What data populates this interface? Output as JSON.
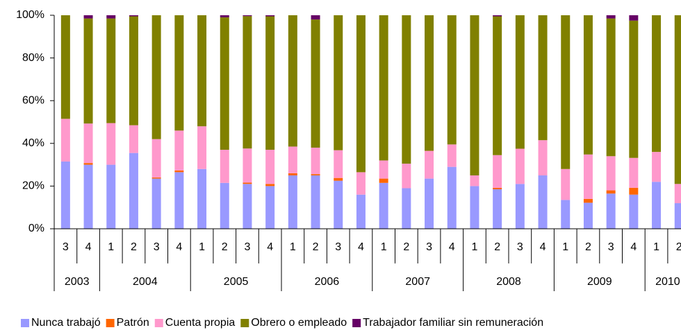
{
  "chart_data": {
    "type": "stacked_bar",
    "groups": [
      {
        "label": "2003",
        "categories": [
          "3",
          "4"
        ]
      },
      {
        "label": "2004",
        "categories": [
          "1",
          "2",
          "3",
          "4"
        ]
      },
      {
        "label": "2005",
        "categories": [
          "1",
          "2",
          "3",
          "4"
        ]
      },
      {
        "label": "2006",
        "categories": [
          "1",
          "2",
          "3",
          "4"
        ]
      },
      {
        "label": "2007",
        "categories": [
          "1",
          "2",
          "3",
          "4"
        ]
      },
      {
        "label": "2008",
        "categories": [
          "1",
          "2",
          "3",
          "4"
        ]
      },
      {
        "label": "2009",
        "categories": [
          "1",
          "2",
          "3",
          "4"
        ]
      },
      {
        "label": "2010",
        "categories": [
          "1",
          "2"
        ]
      }
    ],
    "series": [
      {
        "name": "Nunca trabajó",
        "color": "#9999ff",
        "values": [
          31.5,
          30,
          30,
          35.5,
          23.5,
          26.5,
          28,
          21.5,
          21,
          20,
          25,
          25,
          22.5,
          16,
          21.5,
          19,
          23.5,
          29,
          20,
          18.5,
          21,
          25,
          13.5,
          12.2,
          16.5,
          16,
          22,
          12
        ]
      },
      {
        "name": "Patrón",
        "color": "#ff6600",
        "values": [
          0,
          0.8,
          0,
          0,
          0.5,
          0.8,
          0,
          0,
          0.6,
          1,
          1,
          0.6,
          1.3,
          0,
          2,
          0,
          0,
          0,
          0,
          0.7,
          0,
          0,
          0,
          1.8,
          1.5,
          3.2,
          0,
          0
        ]
      },
      {
        "name": "Cuenta propia",
        "color": "#ff99cc",
        "values": [
          20,
          18.5,
          19.5,
          13,
          18,
          18.7,
          20,
          15.5,
          16,
          16,
          12.5,
          12.4,
          13,
          10.5,
          8.5,
          11.5,
          13,
          10.5,
          5,
          15.3,
          16.5,
          16.5,
          14.5,
          20.8,
          16,
          14,
          14,
          9
        ]
      },
      {
        "name": "Obrero o empleado",
        "color": "#808000",
        "values": [
          48.5,
          49.2,
          49,
          51,
          58,
          54,
          52,
          62,
          62,
          62.5,
          61.5,
          60,
          63.2,
          73.5,
          68,
          69.5,
          63.5,
          60.5,
          75,
          65,
          62.5,
          58.5,
          72,
          65.2,
          64.5,
          64.3,
          64,
          79
        ]
      },
      {
        "name": "Trabajador familiar sin remuneración",
        "color": "#660066",
        "values": [
          0,
          1.5,
          1.5,
          0.5,
          0,
          0,
          0,
          1,
          0.4,
          0.5,
          0,
          2,
          0,
          0,
          0,
          0,
          0,
          0,
          0,
          0.5,
          0,
          0,
          0,
          0,
          1.5,
          2.5,
          0,
          0
        ]
      }
    ],
    "ylim": [
      0,
      100
    ],
    "yticks": [
      {
        "value": 0,
        "label": "0%"
      },
      {
        "value": 20,
        "label": "20%"
      },
      {
        "value": 40,
        "label": "40%"
      },
      {
        "value": 60,
        "label": "60%"
      },
      {
        "value": 80,
        "label": "80%"
      },
      {
        "value": 100,
        "label": "100%"
      }
    ],
    "legend": "bottom"
  }
}
